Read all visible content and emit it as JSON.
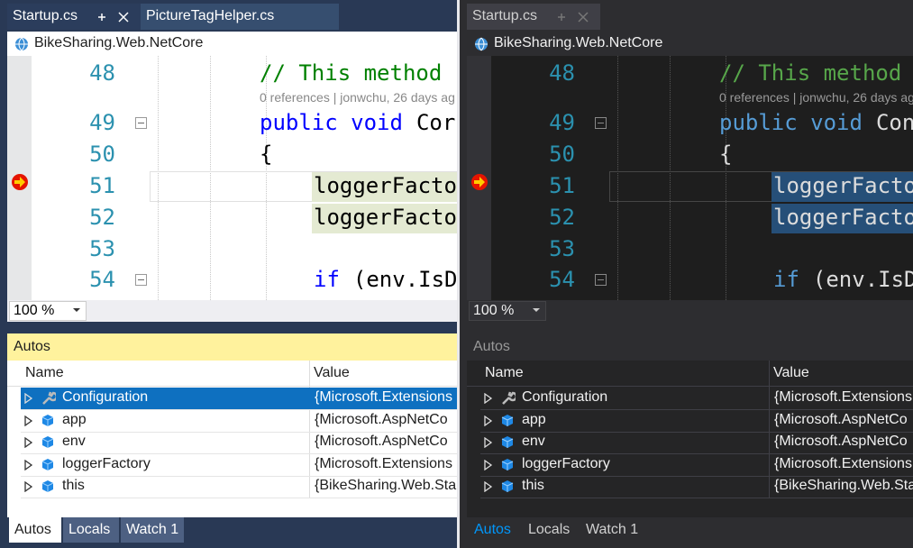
{
  "panes": [
    {
      "tabs": [
        "Startup.cs",
        "PictureTagHelper.cs"
      ],
      "project": "BikeSharing.Web.NetCore",
      "code": [
        {
          "line": "48",
          "tokens": [
            "// This method"
          ]
        },
        {
          "line": "49",
          "tokens": [
            "public void",
            "Cor"
          ]
        },
        {
          "line": "50",
          "tokens": [
            "{"
          ]
        },
        {
          "line": "51",
          "tokens": [
            "loggerFacto"
          ]
        },
        {
          "line": "52",
          "tokens": [
            "loggerFacto"
          ]
        },
        {
          "line": "53",
          "tokens": []
        },
        {
          "line": "54",
          "tokens": [
            "if",
            "(env.IsD"
          ]
        }
      ],
      "codelens": "0 references | jonwchu, 26 days ag",
      "zoom": "100 %",
      "autos": {
        "title": "Autos",
        "columns": [
          "Name",
          "Value"
        ],
        "rows": [
          [
            "Configuration",
            "{Microsoft.Extensions"
          ],
          [
            "app",
            "{Microsoft.AspNetCo"
          ],
          [
            "env",
            "{Microsoft.AspNetCo"
          ],
          [
            "loggerFactory",
            "{Microsoft.Extensions"
          ],
          [
            "this",
            "{BikeSharing.Web.Sta"
          ]
        ]
      },
      "bottom_tabs": [
        "Autos",
        "Locals",
        "Watch 1"
      ]
    },
    {
      "tabs": [
        "Startup.cs"
      ],
      "project": "BikeSharing.Web.NetCore",
      "code": [
        {
          "line": "48",
          "tokens": [
            "// This method"
          ]
        },
        {
          "line": "49",
          "tokens": [
            "public void",
            "Con"
          ]
        },
        {
          "line": "50",
          "tokens": [
            "{"
          ]
        },
        {
          "line": "51",
          "tokens": [
            "loggerFacto"
          ]
        },
        {
          "line": "52",
          "tokens": [
            "loggerFacto"
          ]
        },
        {
          "line": "53",
          "tokens": []
        },
        {
          "line": "54",
          "tokens": [
            "if",
            "(env.IsD"
          ]
        }
      ],
      "codelens": "0 references | jonwchu, 26 days ag",
      "zoom": "100 %",
      "autos": {
        "title": "Autos",
        "columns": [
          "Name",
          "Value"
        ],
        "rows": [
          [
            "Configuration",
            "{Microsoft.Extensions"
          ],
          [
            "app",
            "{Microsoft.AspNetCo"
          ],
          [
            "env",
            "{Microsoft.AspNetCo"
          ],
          [
            "loggerFactory",
            "{Microsoft.Extensions"
          ],
          [
            "this",
            "{BikeSharing.Web.Sta"
          ]
        ]
      },
      "bottom_tabs": [
        "Autos",
        "Locals",
        "Watch 1"
      ]
    }
  ]
}
